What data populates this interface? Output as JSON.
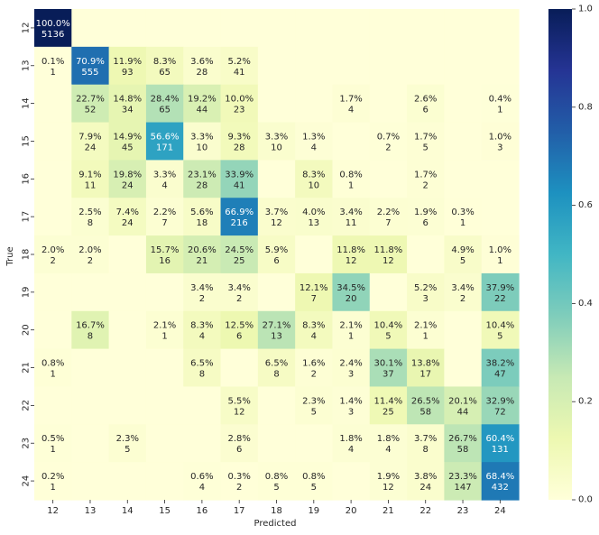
{
  "chart_data": {
    "type": "heatmap",
    "xlabel": "Predicted",
    "ylabel": "True",
    "x_categories": [
      "12",
      "13",
      "14",
      "15",
      "16",
      "17",
      "18",
      "19",
      "20",
      "21",
      "22",
      "23",
      "24"
    ],
    "y_categories": [
      "12",
      "13",
      "14",
      "15",
      "16",
      "17",
      "18",
      "19",
      "20",
      "21",
      "22",
      "23",
      "24"
    ],
    "colormap": "YlGnBu",
    "colorbar": {
      "range": [
        0,
        1
      ],
      "ticks": [
        "0.0",
        "0.2",
        "0.4",
        "0.6",
        "0.8",
        "1.0"
      ]
    },
    "cells": [
      [
        [
          "100.0%",
          "5136"
        ],
        null,
        null,
        null,
        null,
        null,
        null,
        null,
        null,
        null,
        null,
        null,
        null
      ],
      [
        [
          "0.1%",
          "1"
        ],
        [
          "70.9%",
          "555"
        ],
        [
          "11.9%",
          "93"
        ],
        [
          "8.3%",
          "65"
        ],
        [
          "3.6%",
          "28"
        ],
        [
          "5.2%",
          "41"
        ],
        null,
        null,
        null,
        null,
        null,
        null,
        null
      ],
      [
        null,
        [
          "22.7%",
          "52"
        ],
        [
          "14.8%",
          "34"
        ],
        [
          "28.4%",
          "65"
        ],
        [
          "19.2%",
          "44"
        ],
        [
          "10.0%",
          "23"
        ],
        null,
        null,
        [
          "1.7%",
          "4"
        ],
        null,
        [
          "2.6%",
          "6"
        ],
        null,
        [
          "0.4%",
          "1"
        ]
      ],
      [
        null,
        [
          "7.9%",
          "24"
        ],
        [
          "14.9%",
          "45"
        ],
        [
          "56.6%",
          "171"
        ],
        [
          "3.3%",
          "10"
        ],
        [
          "9.3%",
          "28"
        ],
        [
          "3.3%",
          "10"
        ],
        [
          "1.3%",
          "4"
        ],
        null,
        [
          "0.7%",
          "2"
        ],
        [
          "1.7%",
          "5"
        ],
        null,
        [
          "1.0%",
          "3"
        ]
      ],
      [
        null,
        [
          "9.1%",
          "11"
        ],
        [
          "19.8%",
          "24"
        ],
        [
          "3.3%",
          "4"
        ],
        [
          "23.1%",
          "28"
        ],
        [
          "33.9%",
          "41"
        ],
        null,
        [
          "8.3%",
          "10"
        ],
        [
          "0.8%",
          "1"
        ],
        null,
        [
          "1.7%",
          "2"
        ],
        null,
        null
      ],
      [
        null,
        [
          "2.5%",
          "8"
        ],
        [
          "7.4%",
          "24"
        ],
        [
          "2.2%",
          "7"
        ],
        [
          "5.6%",
          "18"
        ],
        [
          "66.9%",
          "216"
        ],
        [
          "3.7%",
          "12"
        ],
        [
          "4.0%",
          "13"
        ],
        [
          "3.4%",
          "11"
        ],
        [
          "2.2%",
          "7"
        ],
        [
          "1.9%",
          "6"
        ],
        [
          "0.3%",
          "1"
        ],
        null
      ],
      [
        [
          "2.0%",
          "2"
        ],
        [
          "2.0%",
          "2"
        ],
        null,
        [
          "15.7%",
          "16"
        ],
        [
          "20.6%",
          "21"
        ],
        [
          "24.5%",
          "25"
        ],
        [
          "5.9%",
          "6"
        ],
        null,
        [
          "11.8%",
          "12"
        ],
        [
          "11.8%",
          "12"
        ],
        null,
        [
          "4.9%",
          "5"
        ],
        [
          "1.0%",
          "1"
        ]
      ],
      [
        null,
        null,
        null,
        null,
        [
          "3.4%",
          "2"
        ],
        [
          "3.4%",
          "2"
        ],
        null,
        [
          "12.1%",
          "7"
        ],
        [
          "34.5%",
          "20"
        ],
        null,
        [
          "5.2%",
          "3"
        ],
        [
          "3.4%",
          "2"
        ],
        [
          "37.9%",
          "22"
        ]
      ],
      [
        null,
        [
          "16.7%",
          "8"
        ],
        null,
        [
          "2.1%",
          "1"
        ],
        [
          "8.3%",
          "4"
        ],
        [
          "12.5%",
          "6"
        ],
        [
          "27.1%",
          "13"
        ],
        [
          "8.3%",
          "4"
        ],
        [
          "2.1%",
          "1"
        ],
        [
          "10.4%",
          "5"
        ],
        [
          "2.1%",
          "1"
        ],
        null,
        [
          "10.4%",
          "5"
        ]
      ],
      [
        [
          "0.8%",
          "1"
        ],
        null,
        null,
        null,
        [
          "6.5%",
          "8"
        ],
        null,
        [
          "6.5%",
          "8"
        ],
        [
          "1.6%",
          "2"
        ],
        [
          "2.4%",
          "3"
        ],
        [
          "30.1%",
          "37"
        ],
        [
          "13.8%",
          "17"
        ],
        null,
        [
          "38.2%",
          "47"
        ]
      ],
      [
        null,
        null,
        null,
        null,
        null,
        [
          "5.5%",
          "12"
        ],
        null,
        [
          "2.3%",
          "5"
        ],
        [
          "1.4%",
          "3"
        ],
        [
          "11.4%",
          "25"
        ],
        [
          "26.5%",
          "58"
        ],
        [
          "20.1%",
          "44"
        ],
        [
          "32.9%",
          "72"
        ]
      ],
      [
        [
          "0.5%",
          "1"
        ],
        null,
        [
          "2.3%",
          "5"
        ],
        null,
        null,
        [
          "2.8%",
          "6"
        ],
        null,
        null,
        [
          "1.8%",
          "4"
        ],
        [
          "1.8%",
          "4"
        ],
        [
          "3.7%",
          "8"
        ],
        [
          "26.7%",
          "58"
        ],
        [
          "60.4%",
          "131"
        ]
      ],
      [
        [
          "0.2%",
          "1"
        ],
        null,
        null,
        null,
        [
          "0.6%",
          "4"
        ],
        [
          "0.3%",
          "2"
        ],
        [
          "0.8%",
          "5"
        ],
        [
          "0.8%",
          "5"
        ],
        null,
        [
          "1.9%",
          "12"
        ],
        [
          "3.8%",
          "24"
        ],
        [
          "23.3%",
          "147"
        ],
        [
          "68.4%",
          "432"
        ]
      ]
    ]
  }
}
